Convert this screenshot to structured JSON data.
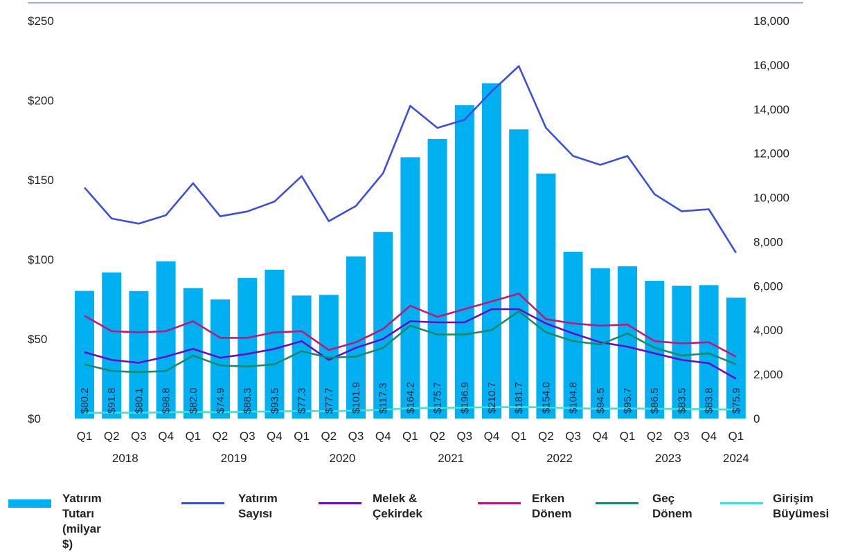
{
  "chart_data": {
    "type": "bar",
    "categories": [
      "Q1",
      "Q2",
      "Q3",
      "Q4",
      "Q1",
      "Q2",
      "Q3",
      "Q4",
      "Q1",
      "Q2",
      "Q3",
      "Q4",
      "Q1",
      "Q2",
      "Q3",
      "Q4",
      "Q1",
      "Q2",
      "Q3",
      "Q4",
      "Q1",
      "Q2",
      "Q3",
      "Q4",
      "Q1"
    ],
    "years": [
      {
        "label": "2018",
        "start": 0,
        "end": 3
      },
      {
        "label": "2019",
        "start": 4,
        "end": 7
      },
      {
        "label": "2020",
        "start": 8,
        "end": 11
      },
      {
        "label": "2021",
        "start": 12,
        "end": 15
      },
      {
        "label": "2022",
        "start": 16,
        "end": 19
      },
      {
        "label": "2023",
        "start": 20,
        "end": 23
      },
      {
        "label": "2024",
        "start": 24,
        "end": 24
      }
    ],
    "bar_series": {
      "name": "Yatırım Tutarı (milyar $)",
      "color": "#00b0f0",
      "values": [
        80.2,
        91.8,
        80.1,
        98.8,
        82.0,
        74.9,
        88.3,
        93.5,
        77.3,
        77.7,
        101.9,
        117.3,
        164.2,
        175.7,
        196.9,
        210.7,
        181.7,
        154.0,
        104.8,
        94.5,
        95.7,
        86.5,
        83.5,
        83.8,
        75.9
      ],
      "labels": [
        "$80.2",
        "$91.8",
        "$80.1",
        "$98.8",
        "$82.0",
        "$74.9",
        "$88.3",
        "$93.5",
        "$77.3",
        "$77.7",
        "$101.9",
        "$117.3",
        "$164.2",
        "$175.7",
        "$196.9",
        "$210.7",
        "$181.7",
        "$154.0",
        "$104.8",
        "$94.5",
        "$95.7",
        "$86.5",
        "$83.5",
        "$83.8",
        "$75.9"
      ]
    },
    "line_series": [
      {
        "name": "Yatırım Sayısı",
        "color": "#3a4fe0",
        "values": [
          10450,
          9050,
          8820,
          9200,
          10650,
          9150,
          9370,
          9820,
          10970,
          8930,
          9620,
          11100,
          14150,
          13150,
          13520,
          14800,
          15950,
          13150,
          11880,
          11480,
          11880,
          10150,
          9380,
          9470,
          7500
        ]
      },
      {
        "name": "Melek & Çekirdek",
        "color": "#6a0dbf",
        "values": [
          3000,
          2650,
          2520,
          2800,
          3150,
          2750,
          2920,
          3150,
          3500,
          2650,
          3200,
          3600,
          4400,
          4350,
          4350,
          4950,
          4950,
          4300,
          3850,
          3450,
          3250,
          2950,
          2650,
          2500,
          1800
        ]
      },
      {
        "name": "Erken Dönem",
        "color": "#c0187a",
        "values": [
          4650,
          3950,
          3900,
          3950,
          4400,
          3650,
          3650,
          3900,
          3950,
          3100,
          3450,
          4050,
          5100,
          4600,
          4950,
          5300,
          5650,
          4500,
          4300,
          4200,
          4250,
          3500,
          3400,
          3450,
          2800
        ]
      },
      {
        "name": "Geç Dönem",
        "color": "#1a8a6a",
        "values": [
          2450,
          2150,
          2100,
          2150,
          2850,
          2400,
          2350,
          2450,
          3050,
          2750,
          2800,
          3200,
          4200,
          3800,
          3800,
          4000,
          4850,
          3900,
          3500,
          3350,
          3850,
          3200,
          2850,
          2950,
          2450
        ]
      },
      {
        "name": "Girişim Büyümesi",
        "color": "#40e0d0",
        "values": [
          250,
          270,
          260,
          280,
          300,
          280,
          310,
          320,
          340,
          330,
          360,
          390,
          470,
          480,
          490,
          510,
          520,
          500,
          470,
          440,
          460,
          440,
          430,
          420,
          400
        ]
      }
    ],
    "y_left": {
      "min": 0,
      "max": 250,
      "ticks": [
        0,
        50,
        100,
        150,
        200,
        250
      ],
      "tick_labels": [
        "$0",
        "$50",
        "$100",
        "$150",
        "$200",
        "$250"
      ]
    },
    "y_right": {
      "min": 0,
      "max": 18000,
      "ticks": [
        0,
        2000,
        4000,
        6000,
        8000,
        10000,
        12000,
        14000,
        16000,
        18000
      ],
      "tick_labels": [
        "0",
        "2,000",
        "4,000",
        "6,000",
        "8,000",
        "10,000",
        "12,000",
        "14,000",
        "16,000",
        "18,000"
      ]
    },
    "grid": false,
    "legend_position": "bottom",
    "legend": [
      {
        "label": "Yatırım Tutarı\n(milyar $)",
        "kind": "bar",
        "color": "#00b0f0"
      },
      {
        "label": "Yatırım\nSayısı",
        "kind": "line",
        "color": "#3a4fe0"
      },
      {
        "label": "Melek &\nÇekirdek",
        "kind": "line",
        "color": "#6a0dbf"
      },
      {
        "label": "Erken\nDönem",
        "kind": "line",
        "color": "#c0187a"
      },
      {
        "label": "Geç\nDönem",
        "kind": "line",
        "color": "#1a8a6a"
      },
      {
        "label": "Girişim\nBüyümesi",
        "kind": "line",
        "color": "#40e0d0"
      }
    ]
  }
}
